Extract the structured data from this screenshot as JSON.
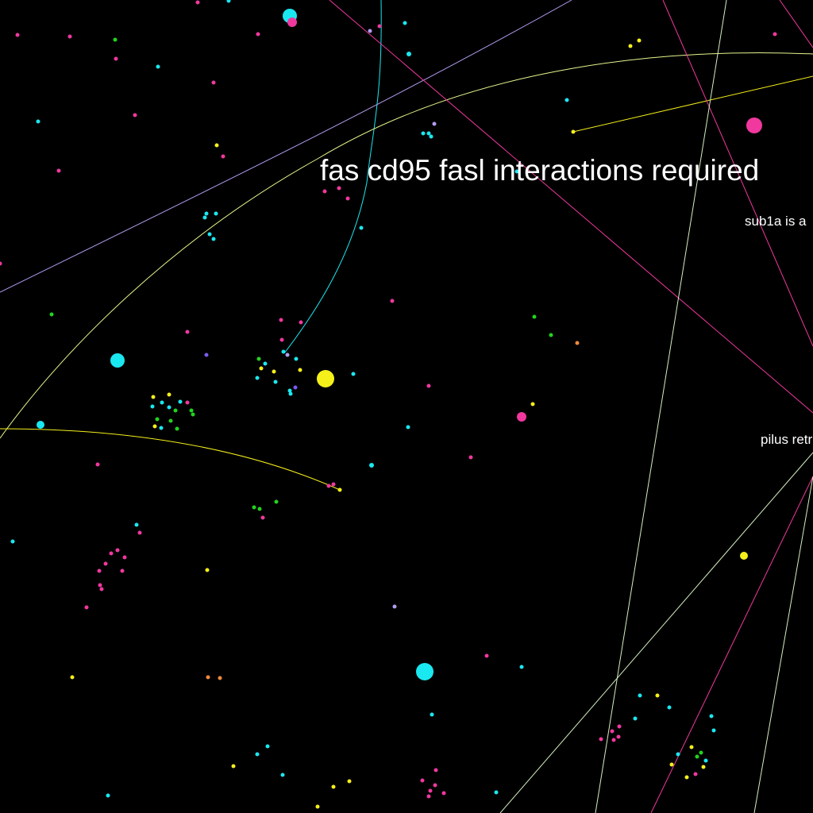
{
  "labels": {
    "main_title": "fas cd95 fasl interactions required",
    "label_sub1a": "sub1a is a",
    "label_pilus": "pilus retr"
  },
  "palette": {
    "background": "#000000",
    "cyan": "#1ae8f0",
    "magenta": "#f0389e",
    "yellow": "#f5f01a",
    "green": "#22d41e",
    "lavender": "#b39cf0",
    "blue_violet": "#7b5cf0",
    "orange": "#f08a3c",
    "pale_yellow": "#e6f58c",
    "pale_green": "#d4f0c0"
  }
}
